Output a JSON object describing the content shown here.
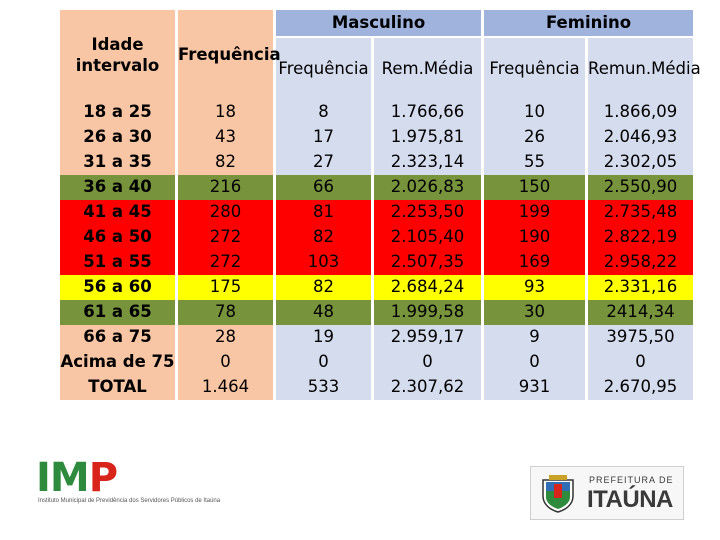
{
  "table": {
    "header": {
      "age": "Idade intervalo",
      "freq_total": "Frequência",
      "group_male": "Masculino",
      "group_female": "Feminino",
      "male_freq": "Frequência",
      "male_pay": "Rem.Média",
      "female_freq": "Frequência",
      "female_pay": "Remun.Média"
    },
    "rows": [
      {
        "age": "18 a 25",
        "freq": "18",
        "m_freq": "8",
        "m_pay": "1.766,66",
        "f_freq": "10",
        "f_pay": "1.866,09",
        "color": "#f8c5a5"
      },
      {
        "age": "26 a 30",
        "freq": "43",
        "m_freq": "17",
        "m_pay": "1.975,81",
        "f_freq": "26",
        "f_pay": "2.046,93",
        "color": "#f8c5a5"
      },
      {
        "age": "31 a 35",
        "freq": "82",
        "m_freq": "27",
        "m_pay": "2.323,14",
        "f_freq": "55",
        "f_pay": "2.302,05",
        "color": "#f8c5a5"
      },
      {
        "age": "36 a 40",
        "freq": "216",
        "m_freq": "66",
        "m_pay": "2.026,83",
        "f_freq": "150",
        "f_pay": "2.550,90",
        "color": "#77933c"
      },
      {
        "age": "41 a 45",
        "freq": "280",
        "m_freq": "81",
        "m_pay": "2.253,50",
        "f_freq": "199",
        "f_pay": "2.735,48",
        "color": "#ff0000"
      },
      {
        "age": "46 a 50",
        "freq": "272",
        "m_freq": "82",
        "m_pay": "2.105,40",
        "f_freq": "190",
        "f_pay": "2.822,19",
        "color": "#ff0000"
      },
      {
        "age": "51 a 55",
        "freq": "272",
        "m_freq": "103",
        "m_pay": "2.507,35",
        "f_freq": "169",
        "f_pay": "2.958,22",
        "color": "#ff0000"
      },
      {
        "age": "56 a 60",
        "freq": "175",
        "m_freq": "82",
        "m_pay": "2.684,24",
        "f_freq": "93",
        "f_pay": "2.331,16",
        "color": "#ffff00"
      },
      {
        "age": "61 a 65",
        "freq": "78",
        "m_freq": "48",
        "m_pay": "1.999,58",
        "f_freq": "30",
        "f_pay": "2414,34",
        "color": "#77933c"
      },
      {
        "age": "66 a 75",
        "freq": "28",
        "m_freq": "19",
        "m_pay": "2.959,17",
        "f_freq": "9",
        "f_pay": "3975,50",
        "color": "#f8c5a5"
      },
      {
        "age": "Acima de 75",
        "freq": "0",
        "m_freq": "0",
        "m_pay": "0",
        "f_freq": "0",
        "f_pay": "0",
        "color": "#f8c5a5"
      },
      {
        "age": "TOTAL",
        "freq": "1.464",
        "m_freq": "533",
        "m_pay": "2.307,62",
        "f_freq": "931",
        "f_pay": "2.670,95",
        "color": "#f8c5a5"
      }
    ]
  },
  "logos": {
    "imp_name": "IMP",
    "imp_caption": "Instituto Municipal de Previdência dos Servidores Públicos de Itaúna",
    "prefeitura_small": "PREFEITURA DE",
    "prefeitura_big": "ITAÚNA"
  },
  "colors": {
    "peach": "#f8c5a5",
    "header_blue": "#9fb3dc",
    "light_blue": "#d4dcee",
    "green": "#77933c",
    "red": "#ff0000",
    "yellow": "#ffff00"
  }
}
